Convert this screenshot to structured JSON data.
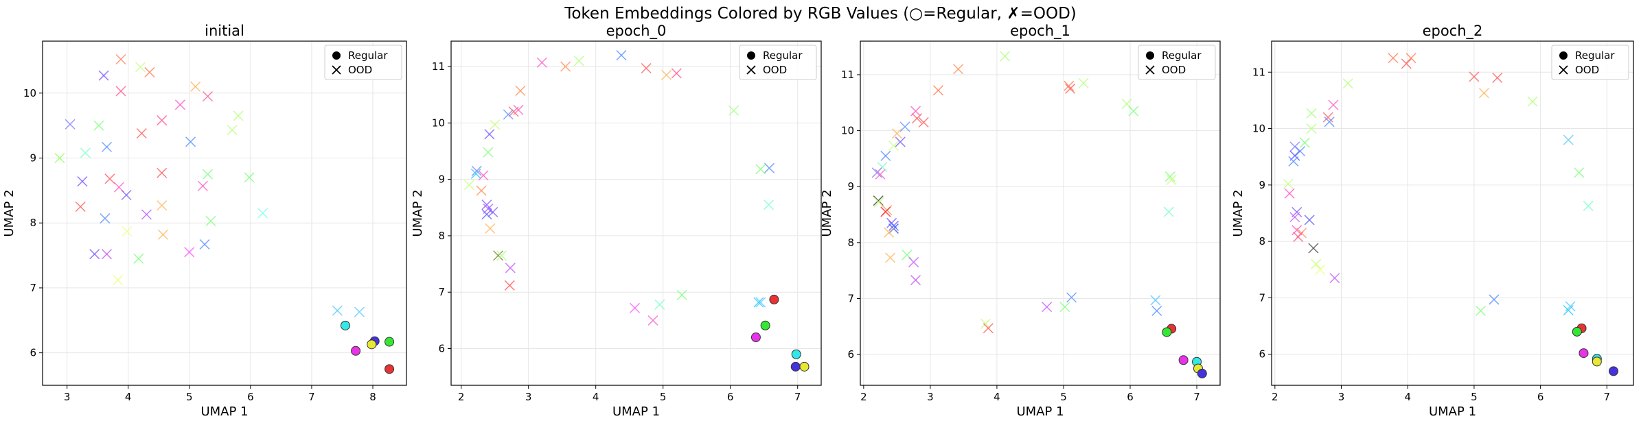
{
  "title": "Token Embeddings Colored by RGB Values (○=Regular, ✗=OOD)",
  "legend_labels": {
    "regular": "Regular",
    "ood": "OOD"
  },
  "chart_data": [
    {
      "type": "scatter",
      "title": "initial",
      "xlabel": "UMAP 1",
      "ylabel": "UMAP 2",
      "xlim": [
        2.6,
        8.55
      ],
      "ylim": [
        5.5,
        10.8
      ],
      "xticks": [
        3,
        4,
        5,
        6,
        7,
        8
      ],
      "yticks": [
        6,
        7,
        8,
        9,
        10
      ],
      "grid": true,
      "legend": "top-right",
      "regular": [
        {
          "x": 7.55,
          "y": 6.42,
          "c": "#33e8e8"
        },
        {
          "x": 8.03,
          "y": 6.18,
          "c": "#4433dd"
        },
        {
          "x": 7.98,
          "y": 6.13,
          "c": "#e8e833"
        },
        {
          "x": 8.27,
          "y": 6.17,
          "c": "#33e833"
        },
        {
          "x": 7.72,
          "y": 6.03,
          "c": "#e833e8"
        },
        {
          "x": 8.27,
          "y": 5.75,
          "c": "#e83333"
        }
      ],
      "ood": [
        {
          "x": 3.88,
          "y": 10.52,
          "c": "#ff8866"
        },
        {
          "x": 4.2,
          "y": 10.4,
          "c": "#ccff88"
        },
        {
          "x": 4.35,
          "y": 10.32,
          "c": "#ff8866"
        },
        {
          "x": 3.6,
          "y": 10.27,
          "c": "#8866ff"
        },
        {
          "x": 5.1,
          "y": 10.1,
          "c": "#ffbb66"
        },
        {
          "x": 3.88,
          "y": 10.03,
          "c": "#ff6699"
        },
        {
          "x": 5.3,
          "y": 9.95,
          "c": "#ff6699"
        },
        {
          "x": 4.85,
          "y": 9.82,
          "c": "#ff66cc"
        },
        {
          "x": 5.8,
          "y": 9.65,
          "c": "#bbff88"
        },
        {
          "x": 4.55,
          "y": 9.58,
          "c": "#ff6699"
        },
        {
          "x": 3.05,
          "y": 9.52,
          "c": "#8888ff"
        },
        {
          "x": 3.52,
          "y": 9.5,
          "c": "#88ff88"
        },
        {
          "x": 5.7,
          "y": 9.43,
          "c": "#bbff88"
        },
        {
          "x": 4.22,
          "y": 9.38,
          "c": "#ff6666"
        },
        {
          "x": 5.02,
          "y": 9.25,
          "c": "#6699ff"
        },
        {
          "x": 3.65,
          "y": 9.17,
          "c": "#6699ff"
        },
        {
          "x": 3.3,
          "y": 9.08,
          "c": "#88ffcc"
        },
        {
          "x": 2.88,
          "y": 9.0,
          "c": "#99ff66"
        },
        {
          "x": 4.55,
          "y": 8.77,
          "c": "#ff6666"
        },
        {
          "x": 5.3,
          "y": 8.75,
          "c": "#88ff88"
        },
        {
          "x": 5.98,
          "y": 8.7,
          "c": "#88ff88"
        },
        {
          "x": 3.7,
          "y": 8.68,
          "c": "#ff6666"
        },
        {
          "x": 3.25,
          "y": 8.64,
          "c": "#8866ff"
        },
        {
          "x": 5.22,
          "y": 8.57,
          "c": "#ff66cc"
        },
        {
          "x": 3.85,
          "y": 8.55,
          "c": "#ff66cc"
        },
        {
          "x": 3.97,
          "y": 8.43,
          "c": "#8866ff"
        },
        {
          "x": 4.55,
          "y": 8.27,
          "c": "#ffbb66"
        },
        {
          "x": 3.22,
          "y": 8.25,
          "c": "#ff6666"
        },
        {
          "x": 6.2,
          "y": 8.15,
          "c": "#88ffee"
        },
        {
          "x": 4.3,
          "y": 8.13,
          "c": "#bb66ff"
        },
        {
          "x": 3.62,
          "y": 8.07,
          "c": "#6699ff"
        },
        {
          "x": 5.35,
          "y": 8.03,
          "c": "#88ff88"
        },
        {
          "x": 3.98,
          "y": 7.87,
          "c": "#eeff88"
        },
        {
          "x": 4.57,
          "y": 7.82,
          "c": "#ffbb66"
        },
        {
          "x": 5.25,
          "y": 7.67,
          "c": "#6699ff"
        },
        {
          "x": 5.0,
          "y": 7.55,
          "c": "#ff66ff"
        },
        {
          "x": 3.45,
          "y": 7.52,
          "c": "#8866ff"
        },
        {
          "x": 3.65,
          "y": 7.52,
          "c": "#cc66ff"
        },
        {
          "x": 4.17,
          "y": 7.45,
          "c": "#88ff88"
        },
        {
          "x": 3.83,
          "y": 7.12,
          "c": "#eeff88"
        },
        {
          "x": 7.42,
          "y": 6.65,
          "c": "#66ccff"
        },
        {
          "x": 7.78,
          "y": 6.63,
          "c": "#66ccff"
        }
      ]
    },
    {
      "type": "scatter",
      "title": "epoch_0",
      "xlabel": "UMAP 1",
      "ylabel": "UMAP 2",
      "xlim": [
        1.85,
        7.35
      ],
      "ylim": [
        5.35,
        11.45
      ],
      "xticks": [
        2,
        3,
        4,
        5,
        6,
        7
      ],
      "yticks": [
        6,
        7,
        8,
        9,
        10,
        11
      ],
      "grid": true,
      "legend": "top-right",
      "regular": [
        {
          "x": 6.65,
          "y": 6.87,
          "c": "#e83333"
        },
        {
          "x": 6.52,
          "y": 6.41,
          "c": "#33e833"
        },
        {
          "x": 6.38,
          "y": 6.2,
          "c": "#e833e8"
        },
        {
          "x": 6.98,
          "y": 5.9,
          "c": "#33e8e8"
        },
        {
          "x": 6.97,
          "y": 5.68,
          "c": "#4433dd"
        },
        {
          "x": 7.1,
          "y": 5.68,
          "c": "#e8e833"
        }
      ],
      "ood": [
        {
          "x": 4.38,
          "y": 11.2,
          "c": "#6699ff"
        },
        {
          "x": 3.75,
          "y": 11.1,
          "c": "#bbff88"
        },
        {
          "x": 3.2,
          "y": 11.07,
          "c": "#ff66cc"
        },
        {
          "x": 3.55,
          "y": 11.0,
          "c": "#ff9966"
        },
        {
          "x": 4.75,
          "y": 10.97,
          "c": "#ff6666"
        },
        {
          "x": 5.2,
          "y": 10.88,
          "c": "#ff6699"
        },
        {
          "x": 5.05,
          "y": 10.85,
          "c": "#ffbb66"
        },
        {
          "x": 2.88,
          "y": 10.57,
          "c": "#ff9966"
        },
        {
          "x": 2.85,
          "y": 10.23,
          "c": "#ff66cc"
        },
        {
          "x": 6.05,
          "y": 10.22,
          "c": "#aaff88"
        },
        {
          "x": 2.78,
          "y": 10.2,
          "c": "#ff6666"
        },
        {
          "x": 2.7,
          "y": 10.15,
          "c": "#6699ff"
        },
        {
          "x": 2.5,
          "y": 9.97,
          "c": "#ccff88"
        },
        {
          "x": 2.42,
          "y": 9.8,
          "c": "#8866ff"
        },
        {
          "x": 2.4,
          "y": 9.48,
          "c": "#88ff88"
        },
        {
          "x": 6.58,
          "y": 9.2,
          "c": "#6699ff"
        },
        {
          "x": 6.45,
          "y": 9.18,
          "c": "#88ff88"
        },
        {
          "x": 2.23,
          "y": 9.15,
          "c": "#8888ff"
        },
        {
          "x": 2.22,
          "y": 9.1,
          "c": "#33ccff"
        },
        {
          "x": 2.33,
          "y": 9.07,
          "c": "#ff66cc"
        },
        {
          "x": 2.12,
          "y": 8.9,
          "c": "#ccff88"
        },
        {
          "x": 2.3,
          "y": 8.8,
          "c": "#ff9966"
        },
        {
          "x": 6.57,
          "y": 8.55,
          "c": "#88ffcc"
        },
        {
          "x": 2.38,
          "y": 8.55,
          "c": "#8866ff"
        },
        {
          "x": 2.4,
          "y": 8.48,
          "c": "#bb66ff"
        },
        {
          "x": 2.47,
          "y": 8.42,
          "c": "#8866ff"
        },
        {
          "x": 2.38,
          "y": 8.38,
          "c": "#6666ff"
        },
        {
          "x": 2.43,
          "y": 8.13,
          "c": "#ffbb66"
        },
        {
          "x": 2.55,
          "y": 7.65,
          "c": "#888844"
        },
        {
          "x": 2.6,
          "y": 7.65,
          "c": "#aaff88"
        },
        {
          "x": 2.73,
          "y": 7.43,
          "c": "#cc66ff"
        },
        {
          "x": 2.72,
          "y": 7.12,
          "c": "#ff6666"
        },
        {
          "x": 5.28,
          "y": 6.95,
          "c": "#88ff88"
        },
        {
          "x": 6.45,
          "y": 6.82,
          "c": "#66ccff"
        },
        {
          "x": 6.42,
          "y": 6.82,
          "c": "#33ccff"
        },
        {
          "x": 4.95,
          "y": 6.78,
          "c": "#88ffcc"
        },
        {
          "x": 4.58,
          "y": 6.72,
          "c": "#ff66ff"
        },
        {
          "x": 4.85,
          "y": 6.5,
          "c": "#ff66cc"
        }
      ]
    },
    {
      "type": "scatter",
      "title": "epoch_1",
      "xlabel": "UMAP 1",
      "ylabel": "UMAP 2",
      "xlim": [
        1.95,
        7.35
      ],
      "ylim": [
        5.45,
        11.6
      ],
      "xticks": [
        2,
        3,
        4,
        5,
        6,
        7
      ],
      "yticks": [
        6,
        7,
        8,
        9,
        10,
        11
      ],
      "grid": true,
      "legend": "top-right",
      "regular": [
        {
          "x": 6.62,
          "y": 6.46,
          "c": "#e83333"
        },
        {
          "x": 6.55,
          "y": 6.4,
          "c": "#33e833"
        },
        {
          "x": 6.8,
          "y": 5.9,
          "c": "#e833e8"
        },
        {
          "x": 7.0,
          "y": 5.87,
          "c": "#33e8e8"
        },
        {
          "x": 7.02,
          "y": 5.75,
          "c": "#e8e833"
        },
        {
          "x": 7.08,
          "y": 5.66,
          "c": "#4433dd"
        }
      ],
      "ood": [
        {
          "x": 4.12,
          "y": 11.33,
          "c": "#bbff88"
        },
        {
          "x": 3.42,
          "y": 11.1,
          "c": "#ff9966"
        },
        {
          "x": 5.3,
          "y": 10.85,
          "c": "#bbff88"
        },
        {
          "x": 5.08,
          "y": 10.8,
          "c": "#ff8866"
        },
        {
          "x": 5.1,
          "y": 10.75,
          "c": "#ff6666"
        },
        {
          "x": 3.12,
          "y": 10.72,
          "c": "#ff8866"
        },
        {
          "x": 5.95,
          "y": 10.48,
          "c": "#bbff88"
        },
        {
          "x": 6.05,
          "y": 10.35,
          "c": "#88ff88"
        },
        {
          "x": 2.78,
          "y": 10.35,
          "c": "#ff66cc"
        },
        {
          "x": 2.8,
          "y": 10.22,
          "c": "#ff6666"
        },
        {
          "x": 2.9,
          "y": 10.15,
          "c": "#ff6666"
        },
        {
          "x": 2.62,
          "y": 10.07,
          "c": "#6699ff"
        },
        {
          "x": 2.5,
          "y": 9.95,
          "c": "#ffbb66"
        },
        {
          "x": 2.55,
          "y": 9.8,
          "c": "#8866ff"
        },
        {
          "x": 2.45,
          "y": 9.73,
          "c": "#ccff88"
        },
        {
          "x": 2.33,
          "y": 9.55,
          "c": "#6699ff"
        },
        {
          "x": 2.28,
          "y": 9.35,
          "c": "#88ffcc"
        },
        {
          "x": 2.2,
          "y": 9.25,
          "c": "#8888ff"
        },
        {
          "x": 2.25,
          "y": 9.22,
          "c": "#ff66cc"
        },
        {
          "x": 6.6,
          "y": 9.18,
          "c": "#88ff88"
        },
        {
          "x": 6.62,
          "y": 9.12,
          "c": "#ccff88"
        },
        {
          "x": 2.22,
          "y": 8.75,
          "c": "#444444"
        },
        {
          "x": 2.23,
          "y": 8.72,
          "c": "#ccff88"
        },
        {
          "x": 2.35,
          "y": 8.58,
          "c": "#ff9966"
        },
        {
          "x": 2.33,
          "y": 8.55,
          "c": "#ff3333"
        },
        {
          "x": 6.58,
          "y": 8.55,
          "c": "#88ffcc"
        },
        {
          "x": 2.42,
          "y": 8.35,
          "c": "#8866ff"
        },
        {
          "x": 2.45,
          "y": 8.3,
          "c": "#6666ff"
        },
        {
          "x": 2.45,
          "y": 8.25,
          "c": "#3366ff"
        },
        {
          "x": 2.38,
          "y": 8.18,
          "c": "#ffbb66"
        },
        {
          "x": 2.65,
          "y": 7.78,
          "c": "#88ff88"
        },
        {
          "x": 2.4,
          "y": 7.73,
          "c": "#ffbb66"
        },
        {
          "x": 2.75,
          "y": 7.65,
          "c": "#cc66ff"
        },
        {
          "x": 2.78,
          "y": 7.33,
          "c": "#cc66ff"
        },
        {
          "x": 5.12,
          "y": 7.02,
          "c": "#6699ff"
        },
        {
          "x": 6.38,
          "y": 6.97,
          "c": "#66ccff"
        },
        {
          "x": 4.75,
          "y": 6.85,
          "c": "#cc66ff"
        },
        {
          "x": 5.02,
          "y": 6.85,
          "c": "#88ff88"
        },
        {
          "x": 6.4,
          "y": 6.78,
          "c": "#6699ff"
        },
        {
          "x": 3.83,
          "y": 6.55,
          "c": "#ccff88"
        },
        {
          "x": 3.87,
          "y": 6.47,
          "c": "#ff6666"
        }
      ]
    },
    {
      "type": "scatter",
      "title": "epoch_2",
      "xlabel": "UMAP 1",
      "ylabel": "UMAP 2",
      "xlim": [
        1.95,
        7.4
      ],
      "ylim": [
        5.45,
        11.55
      ],
      "xticks": [
        2,
        3,
        4,
        5,
        6,
        7
      ],
      "yticks": [
        6,
        7,
        8,
        9,
        10,
        11
      ],
      "grid": true,
      "legend": "top-right",
      "regular": [
        {
          "x": 6.62,
          "y": 6.46,
          "c": "#e83333"
        },
        {
          "x": 6.55,
          "y": 6.4,
          "c": "#33e833"
        },
        {
          "x": 6.65,
          "y": 6.02,
          "c": "#e833e8"
        },
        {
          "x": 6.85,
          "y": 5.92,
          "c": "#33e8e8"
        },
        {
          "x": 6.85,
          "y": 5.87,
          "c": "#e8e833"
        },
        {
          "x": 7.1,
          "y": 5.7,
          "c": "#4433dd"
        }
      ],
      "ood": [
        {
          "x": 3.78,
          "y": 11.25,
          "c": "#ff8866"
        },
        {
          "x": 4.05,
          "y": 11.25,
          "c": "#ff8866"
        },
        {
          "x": 3.98,
          "y": 11.15,
          "c": "#ff6666"
        },
        {
          "x": 5.0,
          "y": 10.92,
          "c": "#ff6666"
        },
        {
          "x": 5.35,
          "y": 10.9,
          "c": "#ff6666"
        },
        {
          "x": 3.1,
          "y": 10.8,
          "c": "#bbff88"
        },
        {
          "x": 5.15,
          "y": 10.63,
          "c": "#ffbb66"
        },
        {
          "x": 5.88,
          "y": 10.48,
          "c": "#bbff88"
        },
        {
          "x": 2.88,
          "y": 10.42,
          "c": "#ff66cc"
        },
        {
          "x": 2.55,
          "y": 10.27,
          "c": "#aaff88"
        },
        {
          "x": 2.8,
          "y": 10.2,
          "c": "#ff6666"
        },
        {
          "x": 2.82,
          "y": 10.12,
          "c": "#6699ff"
        },
        {
          "x": 2.55,
          "y": 10.0,
          "c": "#bbff88"
        },
        {
          "x": 6.42,
          "y": 9.8,
          "c": "#66ccff"
        },
        {
          "x": 2.45,
          "y": 9.75,
          "c": "#88ff88"
        },
        {
          "x": 2.3,
          "y": 9.68,
          "c": "#8888ff"
        },
        {
          "x": 2.38,
          "y": 9.6,
          "c": "#6699ff"
        },
        {
          "x": 2.3,
          "y": 9.52,
          "c": "#6666ff"
        },
        {
          "x": 2.28,
          "y": 9.42,
          "c": "#6699ff"
        },
        {
          "x": 6.58,
          "y": 9.22,
          "c": "#88ff88"
        },
        {
          "x": 2.2,
          "y": 9.02,
          "c": "#ccff88"
        },
        {
          "x": 2.22,
          "y": 8.85,
          "c": "#ff66cc"
        },
        {
          "x": 6.72,
          "y": 8.63,
          "c": "#88ffcc"
        },
        {
          "x": 2.33,
          "y": 8.52,
          "c": "#8866ff"
        },
        {
          "x": 2.3,
          "y": 8.43,
          "c": "#cc66ff"
        },
        {
          "x": 2.52,
          "y": 8.38,
          "c": "#6666ff"
        },
        {
          "x": 2.33,
          "y": 8.2,
          "c": "#ff66cc"
        },
        {
          "x": 2.4,
          "y": 8.15,
          "c": "#ff9966"
        },
        {
          "x": 2.35,
          "y": 8.08,
          "c": "#ff6699"
        },
        {
          "x": 2.58,
          "y": 7.88,
          "c": "#555555"
        },
        {
          "x": 2.62,
          "y": 7.6,
          "c": "#ccff88"
        },
        {
          "x": 2.68,
          "y": 7.5,
          "c": "#eeff88"
        },
        {
          "x": 2.9,
          "y": 7.35,
          "c": "#cc66ff"
        },
        {
          "x": 5.3,
          "y": 6.97,
          "c": "#6699ff"
        },
        {
          "x": 6.45,
          "y": 6.85,
          "c": "#66ccff"
        },
        {
          "x": 6.42,
          "y": 6.78,
          "c": "#33ccff"
        },
        {
          "x": 5.1,
          "y": 6.77,
          "c": "#88ff88"
        }
      ]
    }
  ]
}
